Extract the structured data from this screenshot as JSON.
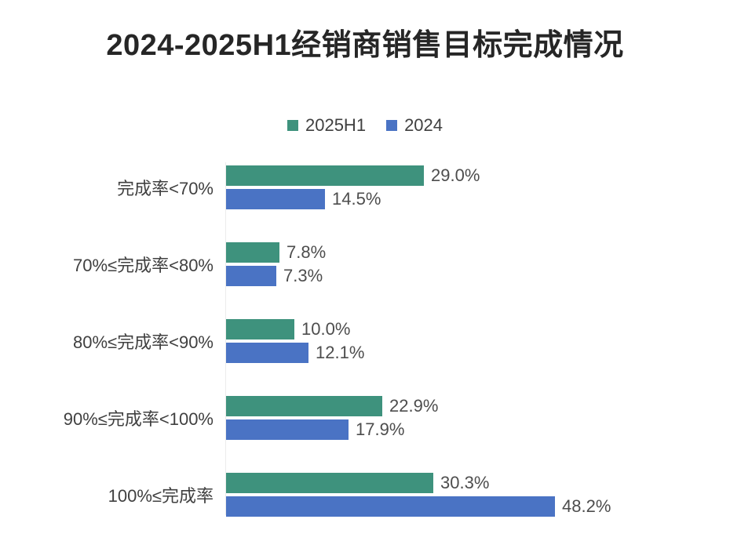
{
  "chart_data": {
    "type": "bar",
    "orientation": "horizontal",
    "title": "2024-2025H1经销商销售目标完成情况",
    "categories": [
      "完成率<70%",
      "70%≤完成率<80%",
      "80%≤完成率<90%",
      "90%≤完成率<100%",
      "100%≤完成率"
    ],
    "series": [
      {
        "name": "2025H1",
        "color": "#3E927D",
        "values": [
          29.0,
          7.8,
          10.0,
          22.9,
          30.3
        ],
        "labels": [
          "29.0%",
          "7.8%",
          "10.0%",
          "22.9%",
          "30.3%"
        ]
      },
      {
        "name": "2024",
        "color": "#4A73C4",
        "values": [
          14.5,
          7.3,
          12.1,
          17.9,
          48.2
        ],
        "labels": [
          "14.5%",
          "7.3%",
          "12.1%",
          "17.9%",
          "48.2%"
        ]
      }
    ],
    "xlim": [
      0,
      50
    ],
    "grid": false,
    "legend_position": "top",
    "value_labels_shown": true
  }
}
